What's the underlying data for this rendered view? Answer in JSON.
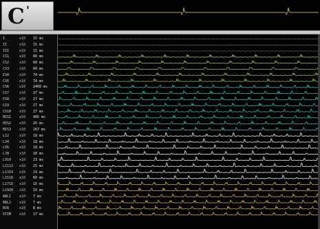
{
  "panel": {
    "letter": "C",
    "prime": "'"
  },
  "colors": {
    "background": "#000000",
    "reference_trace": "#b7a65a",
    "trace_groups": {
      "green": "#8fb045",
      "teal": "#2fb2a0",
      "white": "#e8e8e8",
      "gold": "#c9a447"
    }
  },
  "channels": [
    {
      "lead": "I",
      "gain": "x10",
      "interval": "15 ms",
      "group": "gray"
    },
    {
      "lead": "II",
      "gain": "x10",
      "interval": "15 ms",
      "group": "gray"
    },
    {
      "lead": "III",
      "gain": "x10",
      "interval": "15 ms",
      "group": "gray"
    },
    {
      "lead": "CS1",
      "gain": "x10",
      "interval": "60 ms",
      "group": "green"
    },
    {
      "lead": "CS2",
      "gain": "x10",
      "interval": "60 ms",
      "group": "green"
    },
    {
      "lead": "CS3",
      "gain": "x10",
      "interval": "60 ms",
      "group": "green"
    },
    {
      "lead": "CS4",
      "gain": "x10",
      "interval": "74 ms",
      "group": "green"
    },
    {
      "lead": "CS5",
      "gain": "x10",
      "interval": "74 ms",
      "group": "green"
    },
    {
      "lead": "CS6",
      "gain": "x10",
      "interval": "2468 ms",
      "group": "teal"
    },
    {
      "lead": "CS7",
      "gain": "x10",
      "interval": "27 ms",
      "group": "teal"
    },
    {
      "lead": "CS8",
      "gain": "x10",
      "interval": "27 ms",
      "group": "teal"
    },
    {
      "lead": "CS9",
      "gain": "x10",
      "interval": "27 ms",
      "group": "teal"
    },
    {
      "lead": "CS10",
      "gain": "x10",
      "interval": "27 ms",
      "group": "teal"
    },
    {
      "lead": "HIS1",
      "gain": "x10",
      "interval": "405 ms",
      "group": "teal"
    },
    {
      "lead": "HIS2",
      "gain": "x10",
      "interval": "25 ms",
      "group": "teal"
    },
    {
      "lead": "HIS3",
      "gain": "x10",
      "interval": "267 ms",
      "group": "teal"
    },
    {
      "lead": "L12",
      "gain": "x10",
      "interval": "18 ms",
      "group": "white"
    },
    {
      "lead": "L34",
      "gain": "x10",
      "interval": "18 ms",
      "group": "white"
    },
    {
      "lead": "L56",
      "gain": "x10",
      "interval": "18 ms",
      "group": "white"
    },
    {
      "lead": "L78",
      "gain": "x10",
      "interval": "18 ms",
      "group": "white"
    },
    {
      "lead": "L910",
      "gain": "x10",
      "interval": "23 ms",
      "group": "white"
    },
    {
      "lead": "L1112",
      "gain": "x10",
      "interval": "25 ms",
      "group": "white"
    },
    {
      "lead": "L1314",
      "gain": "x10",
      "interval": "23 ms",
      "group": "white"
    },
    {
      "lead": "L1516",
      "gain": "x10",
      "interval": "60 ms",
      "group": "white"
    },
    {
      "lead": "L1718",
      "gain": "x10",
      "interval": "15 ms",
      "group": "gold"
    },
    {
      "lead": "L1920",
      "gain": "x10",
      "interval": "15 ms",
      "group": "gold"
    },
    {
      "lead": "ABL1",
      "gain": "x10",
      "interval": "7 ms",
      "group": "gold"
    },
    {
      "lead": "ABL2",
      "gain": "x10",
      "interval": "7 ms",
      "group": "gold"
    },
    {
      "lead": "RVA",
      "gain": "x10",
      "interval": "6 ms",
      "group": "gold"
    },
    {
      "lead": "STIM",
      "gain": "x10",
      "interval": "17 ms",
      "group": "gold"
    }
  ]
}
